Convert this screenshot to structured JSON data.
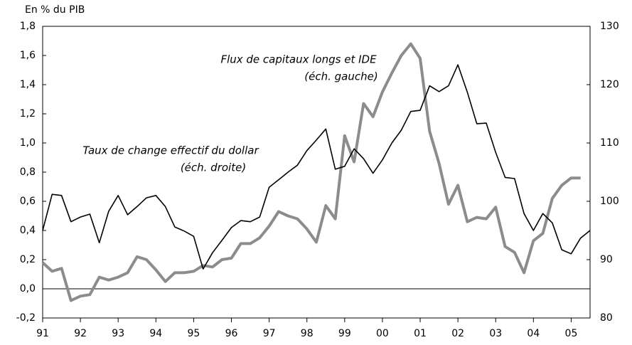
{
  "chart_data": {
    "type": "line",
    "unit_label": "En % du PIB",
    "annotations": [
      {
        "lines": [
          "Flux de capitaux longs et IDE",
          "(éch. gauche)"
        ],
        "series": 0
      },
      {
        "lines": [
          "Taux de change effectif du dollar",
          "(éch. droite)"
        ],
        "series": 1
      }
    ],
    "x": [
      1991,
      1991.25,
      1991.5,
      1991.75,
      1992,
      1992.25,
      1992.5,
      1992.75,
      1993,
      1993.25,
      1993.5,
      1993.75,
      1994,
      1994.25,
      1994.5,
      1994.75,
      1995,
      1995.25,
      1995.5,
      1995.75,
      1996,
      1996.25,
      1996.5,
      1996.75,
      1997,
      1997.25,
      1997.5,
      1997.75,
      1998,
      1998.25,
      1998.5,
      1998.75,
      1999,
      1999.25,
      1999.5,
      1999.75,
      2000,
      2000.25,
      2000.5,
      2000.75,
      2001,
      2001.25,
      2001.5,
      2001.75,
      2002,
      2002.25,
      2002.5,
      2002.75,
      2003,
      2003.25,
      2003.5,
      2003.75,
      2004,
      2004.25,
      2004.5,
      2004.75,
      2005,
      2005.25,
      2005.5
    ],
    "series": [
      {
        "name": "Flux de capitaux longs et IDE",
        "color": "#8c8c8c",
        "axis": "y",
        "values": [
          0.18,
          0.12,
          0.14,
          -0.08,
          -0.05,
          -0.04,
          0.08,
          0.06,
          0.08,
          0.11,
          0.22,
          0.2,
          0.13,
          0.05,
          0.11,
          0.11,
          0.12,
          0.16,
          0.15,
          0.2,
          0.21,
          0.31,
          0.31,
          0.35,
          0.43,
          0.53,
          0.5,
          0.48,
          0.41,
          0.32,
          0.57,
          0.48,
          1.05,
          0.87,
          1.27,
          1.18,
          1.35,
          1.48,
          1.6,
          1.68,
          1.58,
          1.08,
          0.86,
          0.58,
          0.71,
          0.46,
          0.49,
          0.48,
          0.56,
          0.29,
          0.25,
          0.11,
          0.33,
          0.38,
          0.62,
          0.71,
          0.76,
          0.76,
          null
        ]
      },
      {
        "name": "Taux de change effectif du dollar",
        "color": "#000000",
        "axis": "y2",
        "values": [
          95,
          101.2,
          101,
          96.5,
          97.3,
          97.8,
          92.9,
          98.3,
          101,
          97.7,
          99.1,
          100.6,
          101,
          99.1,
          95.6,
          94.9,
          94,
          88.4,
          91.2,
          93.3,
          95.5,
          96.7,
          96.5,
          97.3,
          102.4,
          103.7,
          105,
          106.2,
          108.7,
          110.5,
          112.4,
          105.5,
          106,
          109,
          107.3,
          104.8,
          107.1,
          110,
          112.2,
          115.4,
          115.6,
          119.8,
          118.8,
          119.8,
          123.4,
          118.7,
          113.3,
          113.4,
          108.4,
          104.1,
          103.9,
          97.9,
          95,
          97.9,
          96.3,
          91.7,
          91,
          93.7,
          95
        ]
      }
    ],
    "xlim": [
      1991,
      2005.5
    ],
    "xticks": [
      {
        "value": 1991,
        "label": "91"
      },
      {
        "value": 1992,
        "label": "92"
      },
      {
        "value": 1993,
        "label": "93"
      },
      {
        "value": 1994,
        "label": "94"
      },
      {
        "value": 1995,
        "label": "95"
      },
      {
        "value": 1996,
        "label": "96"
      },
      {
        "value": 1997,
        "label": "97"
      },
      {
        "value": 1998,
        "label": "98"
      },
      {
        "value": 1999,
        "label": "99"
      },
      {
        "value": 2000,
        "label": "00"
      },
      {
        "value": 2001,
        "label": "01"
      },
      {
        "value": 2002,
        "label": "02"
      },
      {
        "value": 2003,
        "label": "03"
      },
      {
        "value": 2004,
        "label": "04"
      },
      {
        "value": 2005,
        "label": "05"
      }
    ],
    "ylim": [
      -0.2,
      1.8
    ],
    "yticks": [
      {
        "value": -0.2,
        "label": "-0,2"
      },
      {
        "value": 0,
        "label": "0,0"
      },
      {
        "value": 0.2,
        "label": "0,2"
      },
      {
        "value": 0.4,
        "label": "0,4"
      },
      {
        "value": 0.6,
        "label": "0,6"
      },
      {
        "value": 0.8,
        "label": "0,8"
      },
      {
        "value": 1.0,
        "label": "1,0"
      },
      {
        "value": 1.2,
        "label": "1,2"
      },
      {
        "value": 1.4,
        "label": "1,4"
      },
      {
        "value": 1.6,
        "label": "1,6"
      },
      {
        "value": 1.8,
        "label": "1,8"
      }
    ],
    "y2lim": [
      80,
      130
    ],
    "y2ticks": [
      80,
      90,
      100,
      110,
      120,
      130
    ],
    "zero_line": 0
  }
}
